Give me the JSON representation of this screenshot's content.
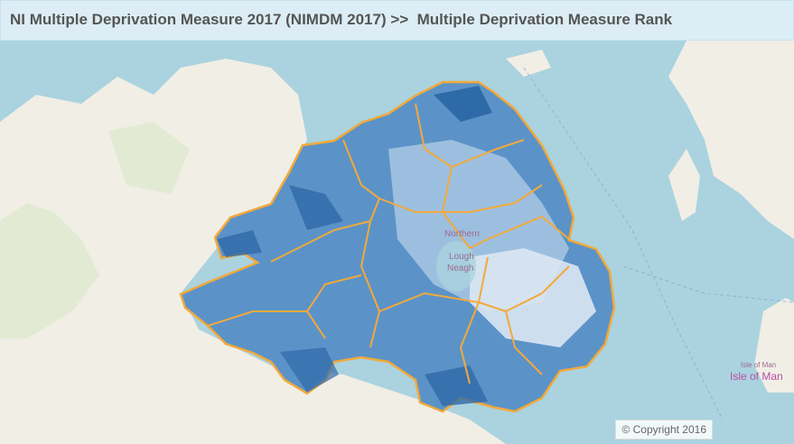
{
  "header": {
    "title": "NI Multiple Deprivation Measure 2017 (NIMDM 2017) >>  Multiple Deprivation Measure Rank"
  },
  "map": {
    "labels": [
      "Northern",
      "Lough",
      "Neagh",
      "Isle of Man",
      "Isle of Man"
    ]
  },
  "footer": {
    "copyright": "© Copyright 2016"
  }
}
